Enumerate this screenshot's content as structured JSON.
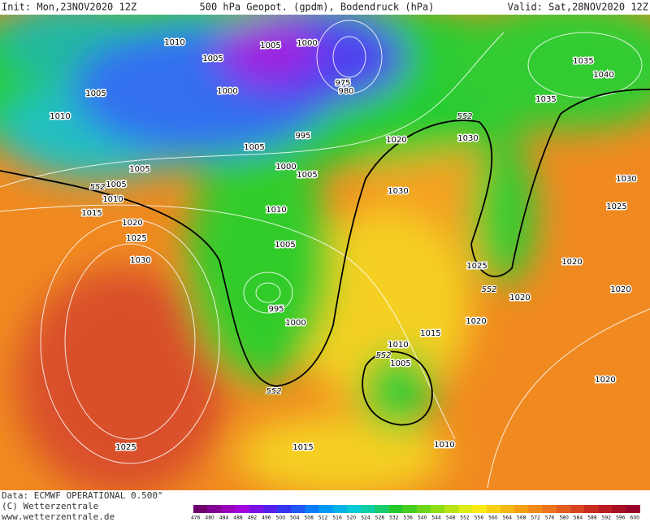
{
  "header": {
    "init": "Init: Mon,23NOV2020 12Z",
    "title": "500 hPa Geopot. (gpdm), Bodendruck (hPa)",
    "valid": "Valid: Sat,28NOV2020 12Z"
  },
  "isobar_labels": [
    1010,
    1005,
    1005,
    1010,
    1000,
    1005,
    1000,
    975,
    980,
    995,
    1005,
    1000,
    1005,
    1005,
    1005,
    1010,
    1015,
    1020,
    1025,
    1030,
    1010,
    1005,
    995,
    1000,
    1035,
    1035,
    1040,
    1020,
    1030,
    1030,
    1030,
    1025,
    1020,
    1020,
    1025,
    1020,
    1020,
    1015,
    1010,
    1005,
    1020,
    1025,
    1015,
    1010
  ],
  "geopotential_labels": [
    552,
    552,
    552,
    552,
    552
  ],
  "footer": {
    "source": "Data: ECMWF OPERATIONAL 0.500°",
    "copyright": "(C) Wetterzentrale",
    "url": "www.wetterzentrale.de"
  },
  "colorbar": {
    "labels": [
      476,
      480,
      484,
      488,
      492,
      496,
      500,
      504,
      508,
      512,
      516,
      520,
      524,
      528,
      532,
      536,
      540,
      544,
      548,
      552,
      556,
      560,
      564,
      568,
      572,
      576,
      580,
      584,
      588,
      592,
      596,
      600
    ]
  }
}
